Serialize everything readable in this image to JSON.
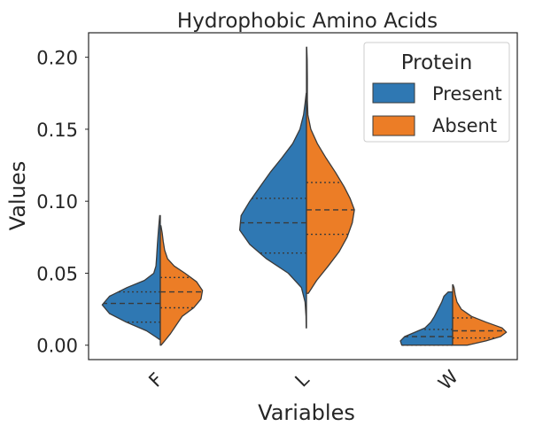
{
  "chart_data": {
    "type": "violin",
    "title": "Hydrophobic Amino Acids",
    "xlabel": "Variables",
    "ylabel": "Values",
    "ylim": [
      -0.01,
      0.217
    ],
    "yticks": [
      "0.00",
      "0.05",
      "0.10",
      "0.15",
      "0.20"
    ],
    "categories": [
      "F",
      "L",
      "W"
    ],
    "legend": {
      "title": "Protein",
      "position": "top-right",
      "entries": [
        "Present",
        "Absent"
      ]
    },
    "colors": {
      "Present": "#2f78b3",
      "Absent": "#ec7d26"
    },
    "grid": false,
    "series": [
      {
        "name": "Present",
        "side": "left",
        "violins": [
          {
            "category": "F",
            "profile": [
              [
                0.004,
                0.012
              ],
              [
                0.006,
                0.07
              ],
              [
                0.01,
                0.19
              ],
              [
                0.016,
                0.47
              ],
              [
                0.022,
                0.7
              ],
              [
                0.028,
                0.8
              ],
              [
                0.034,
                0.7
              ],
              [
                0.04,
                0.46
              ],
              [
                0.045,
                0.22
              ],
              [
                0.05,
                0.09
              ],
              [
                0.055,
                0.06
              ],
              [
                0.062,
                0.05
              ],
              [
                0.07,
                0.04
              ],
              [
                0.08,
                0.025
              ],
              [
                0.09,
                0.008
              ]
            ],
            "quartiles": [
              0.016,
              0.029,
              0.037
            ]
          },
          {
            "category": "L",
            "profile": [
              [
                0.012,
                0.004
              ],
              [
                0.02,
                0.006
              ],
              [
                0.03,
                0.02
              ],
              [
                0.04,
                0.07
              ],
              [
                0.05,
                0.25
              ],
              [
                0.06,
                0.55
              ],
              [
                0.07,
                0.78
              ],
              [
                0.08,
                0.92
              ],
              [
                0.09,
                0.9
              ],
              [
                0.1,
                0.78
              ],
              [
                0.11,
                0.64
              ],
              [
                0.12,
                0.5
              ],
              [
                0.13,
                0.34
              ],
              [
                0.14,
                0.19
              ],
              [
                0.15,
                0.09
              ],
              [
                0.16,
                0.04
              ],
              [
                0.168,
                0.02
              ],
              [
                0.175,
                0.004
              ]
            ],
            "quartiles": [
              0.064,
              0.085,
              0.102
            ]
          },
          {
            "category": "W",
            "profile": [
              [
                0.0,
                0.7
              ],
              [
                0.003,
                0.72
              ],
              [
                0.006,
                0.66
              ],
              [
                0.009,
                0.52
              ],
              [
                0.012,
                0.38
              ],
              [
                0.016,
                0.3
              ],
              [
                0.02,
                0.25
              ],
              [
                0.025,
                0.2
              ],
              [
                0.03,
                0.15
              ],
              [
                0.034,
                0.12
              ],
              [
                0.037,
                0.06
              ]
            ],
            "quartiles": [
              0.0,
              0.006,
              0.011
            ]
          }
        ]
      },
      {
        "name": "Absent",
        "side": "right",
        "violins": [
          {
            "category": "F",
            "profile": [
              [
                0.0,
                0.01
              ],
              [
                0.003,
                0.06
              ],
              [
                0.008,
                0.14
              ],
              [
                0.014,
                0.22
              ],
              [
                0.02,
                0.3
              ],
              [
                0.026,
                0.46
              ],
              [
                0.032,
                0.56
              ],
              [
                0.038,
                0.58
              ],
              [
                0.044,
                0.5
              ],
              [
                0.05,
                0.34
              ],
              [
                0.055,
                0.19
              ],
              [
                0.06,
                0.1
              ],
              [
                0.066,
                0.06
              ],
              [
                0.072,
                0.04
              ],
              [
                0.078,
                0.025
              ],
              [
                0.083,
                0.008
              ]
            ],
            "quartiles": [
              0.026,
              0.037,
              0.047
            ]
          },
          {
            "category": "L",
            "profile": [
              [
                0.036,
                0.025
              ],
              [
                0.045,
                0.14
              ],
              [
                0.055,
                0.3
              ],
              [
                0.065,
                0.45
              ],
              [
                0.075,
                0.56
              ],
              [
                0.085,
                0.63
              ],
              [
                0.094,
                0.66
              ],
              [
                0.102,
                0.6
              ],
              [
                0.11,
                0.52
              ],
              [
                0.12,
                0.4
              ],
              [
                0.13,
                0.27
              ],
              [
                0.14,
                0.15
              ],
              [
                0.15,
                0.06
              ],
              [
                0.16,
                0.02
              ],
              [
                0.17,
                0.012
              ],
              [
                0.185,
                0.012
              ],
              [
                0.198,
                0.01
              ],
              [
                0.207,
                0.004
              ]
            ],
            "quartiles": [
              0.077,
              0.094,
              0.113
            ]
          },
          {
            "category": "W",
            "profile": [
              [
                0.0,
                0.2
              ],
              [
                0.003,
                0.46
              ],
              [
                0.006,
                0.66
              ],
              [
                0.009,
                0.74
              ],
              [
                0.012,
                0.68
              ],
              [
                0.016,
                0.46
              ],
              [
                0.02,
                0.26
              ],
              [
                0.025,
                0.12
              ],
              [
                0.03,
                0.06
              ],
              [
                0.035,
                0.035
              ],
              [
                0.04,
                0.02
              ],
              [
                0.042,
                0.005
              ]
            ],
            "quartiles": [
              0.005,
              0.01,
              0.019
            ]
          }
        ]
      }
    ]
  }
}
